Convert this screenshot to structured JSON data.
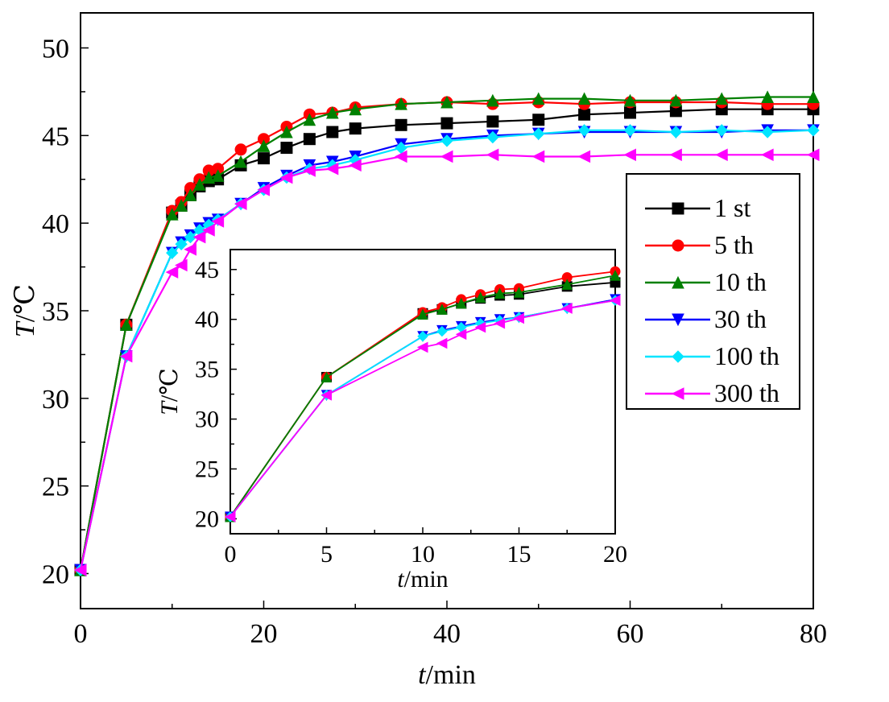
{
  "chart_data": [
    {
      "type": "line",
      "xlabel": "t/min",
      "ylabel": "T/℃",
      "xlim": [
        0,
        80
      ],
      "ylim": [
        18,
        52
      ],
      "xticks": [
        0,
        20,
        40,
        60,
        80
      ],
      "yticks": [
        20,
        25,
        30,
        35,
        40,
        45,
        50
      ],
      "x": [
        0,
        5,
        10,
        11,
        12,
        13,
        14,
        15,
        17.5,
        20,
        22.5,
        25,
        27.5,
        30,
        35,
        40,
        45,
        50,
        55,
        60,
        65,
        70,
        75,
        80
      ],
      "series": [
        {
          "name": "1 st",
          "color": "#000000",
          "marker": "square",
          "values": [
            20.2,
            34.2,
            40.6,
            41.0,
            41.6,
            42.1,
            42.4,
            42.5,
            43.3,
            43.7,
            44.3,
            44.8,
            45.2,
            45.4,
            45.6,
            45.7,
            45.8,
            45.9,
            46.2,
            46.3,
            46.4,
            46.5,
            46.5,
            46.5
          ]
        },
        {
          "name": "5 th",
          "color": "#ff0000",
          "marker": "circle",
          "values": [
            20.2,
            34.2,
            40.7,
            41.2,
            42.0,
            42.5,
            43.0,
            43.1,
            44.2,
            44.8,
            45.5,
            46.2,
            46.3,
            46.6,
            46.8,
            46.9,
            46.8,
            46.9,
            46.8,
            46.9,
            46.9,
            46.9,
            46.8,
            46.8
          ]
        },
        {
          "name": "10 th",
          "color": "#008000",
          "marker": "triangle-up",
          "values": [
            20.2,
            34.2,
            40.5,
            41.0,
            41.6,
            42.2,
            42.6,
            42.7,
            43.5,
            44.4,
            45.2,
            45.9,
            46.3,
            46.5,
            46.8,
            46.9,
            47.0,
            47.1,
            47.1,
            47.0,
            47.0,
            47.1,
            47.2,
            47.2
          ]
        },
        {
          "name": "30 th",
          "color": "#0000ff",
          "marker": "triangle-down",
          "values": [
            20.2,
            32.4,
            38.3,
            38.9,
            39.3,
            39.7,
            40.0,
            40.2,
            41.1,
            42.0,
            42.7,
            43.3,
            43.5,
            43.8,
            44.5,
            44.8,
            45.0,
            45.1,
            45.2,
            45.2,
            45.2,
            45.2,
            45.3,
            45.3
          ]
        },
        {
          "name": "100 th",
          "color": "#00e5ff",
          "marker": "diamond",
          "values": [
            20.2,
            32.4,
            38.3,
            38.8,
            39.2,
            39.6,
            39.9,
            40.2,
            41.1,
            41.9,
            42.6,
            43.1,
            43.3,
            43.6,
            44.3,
            44.7,
            44.9,
            45.1,
            45.3,
            45.3,
            45.2,
            45.3,
            45.2,
            45.3
          ]
        },
        {
          "name": "300 th",
          "color": "#ff00ff",
          "marker": "triangle-left",
          "values": [
            20.2,
            32.4,
            37.2,
            37.6,
            38.5,
            39.2,
            39.6,
            40.1,
            41.1,
            41.9,
            42.6,
            43.0,
            43.1,
            43.3,
            43.8,
            43.8,
            43.9,
            43.8,
            43.8,
            43.9,
            43.9,
            43.9,
            43.9,
            43.9
          ]
        }
      ]
    },
    {
      "type": "line",
      "xlabel": "t/min",
      "ylabel": "T/℃",
      "xlim": [
        0,
        20
      ],
      "ylim": [
        18.5,
        47
      ],
      "xticks": [
        0,
        5,
        10,
        15,
        20
      ],
      "yticks": [
        20,
        25,
        30,
        35,
        40,
        45
      ],
      "x": [
        0,
        5,
        10,
        11,
        12,
        13,
        14,
        15,
        17.5,
        20
      ],
      "series": [
        {
          "name": "1 st",
          "color": "#000000",
          "marker": "square",
          "values": [
            20.2,
            34.2,
            40.6,
            41.0,
            41.6,
            42.1,
            42.4,
            42.5,
            43.3,
            43.7
          ]
        },
        {
          "name": "5 th",
          "color": "#ff0000",
          "marker": "circle",
          "values": [
            20.2,
            34.2,
            40.7,
            41.2,
            42.0,
            42.5,
            43.0,
            43.1,
            44.2,
            44.8
          ]
        },
        {
          "name": "10 th",
          "color": "#008000",
          "marker": "triangle-up",
          "values": [
            20.2,
            34.2,
            40.5,
            41.0,
            41.6,
            42.2,
            42.6,
            42.7,
            43.5,
            44.4
          ]
        },
        {
          "name": "30 th",
          "color": "#0000ff",
          "marker": "triangle-down",
          "values": [
            20.2,
            32.4,
            38.3,
            38.9,
            39.3,
            39.7,
            40.0,
            40.2,
            41.1,
            42.0
          ]
        },
        {
          "name": "100 th",
          "color": "#00e5ff",
          "marker": "diamond",
          "values": [
            20.2,
            32.4,
            38.3,
            38.8,
            39.2,
            39.6,
            39.9,
            40.2,
            41.1,
            41.9
          ]
        },
        {
          "name": "300 th",
          "color": "#ff00ff",
          "marker": "triangle-left",
          "values": [
            20.2,
            32.4,
            37.2,
            37.6,
            38.5,
            39.2,
            39.6,
            40.1,
            41.1,
            41.9
          ]
        }
      ]
    }
  ],
  "legend": {
    "placement": "right, inside main plot",
    "items": [
      "1 st",
      "5 th",
      "10 th",
      "30 th",
      "100 th",
      "300 th"
    ]
  }
}
